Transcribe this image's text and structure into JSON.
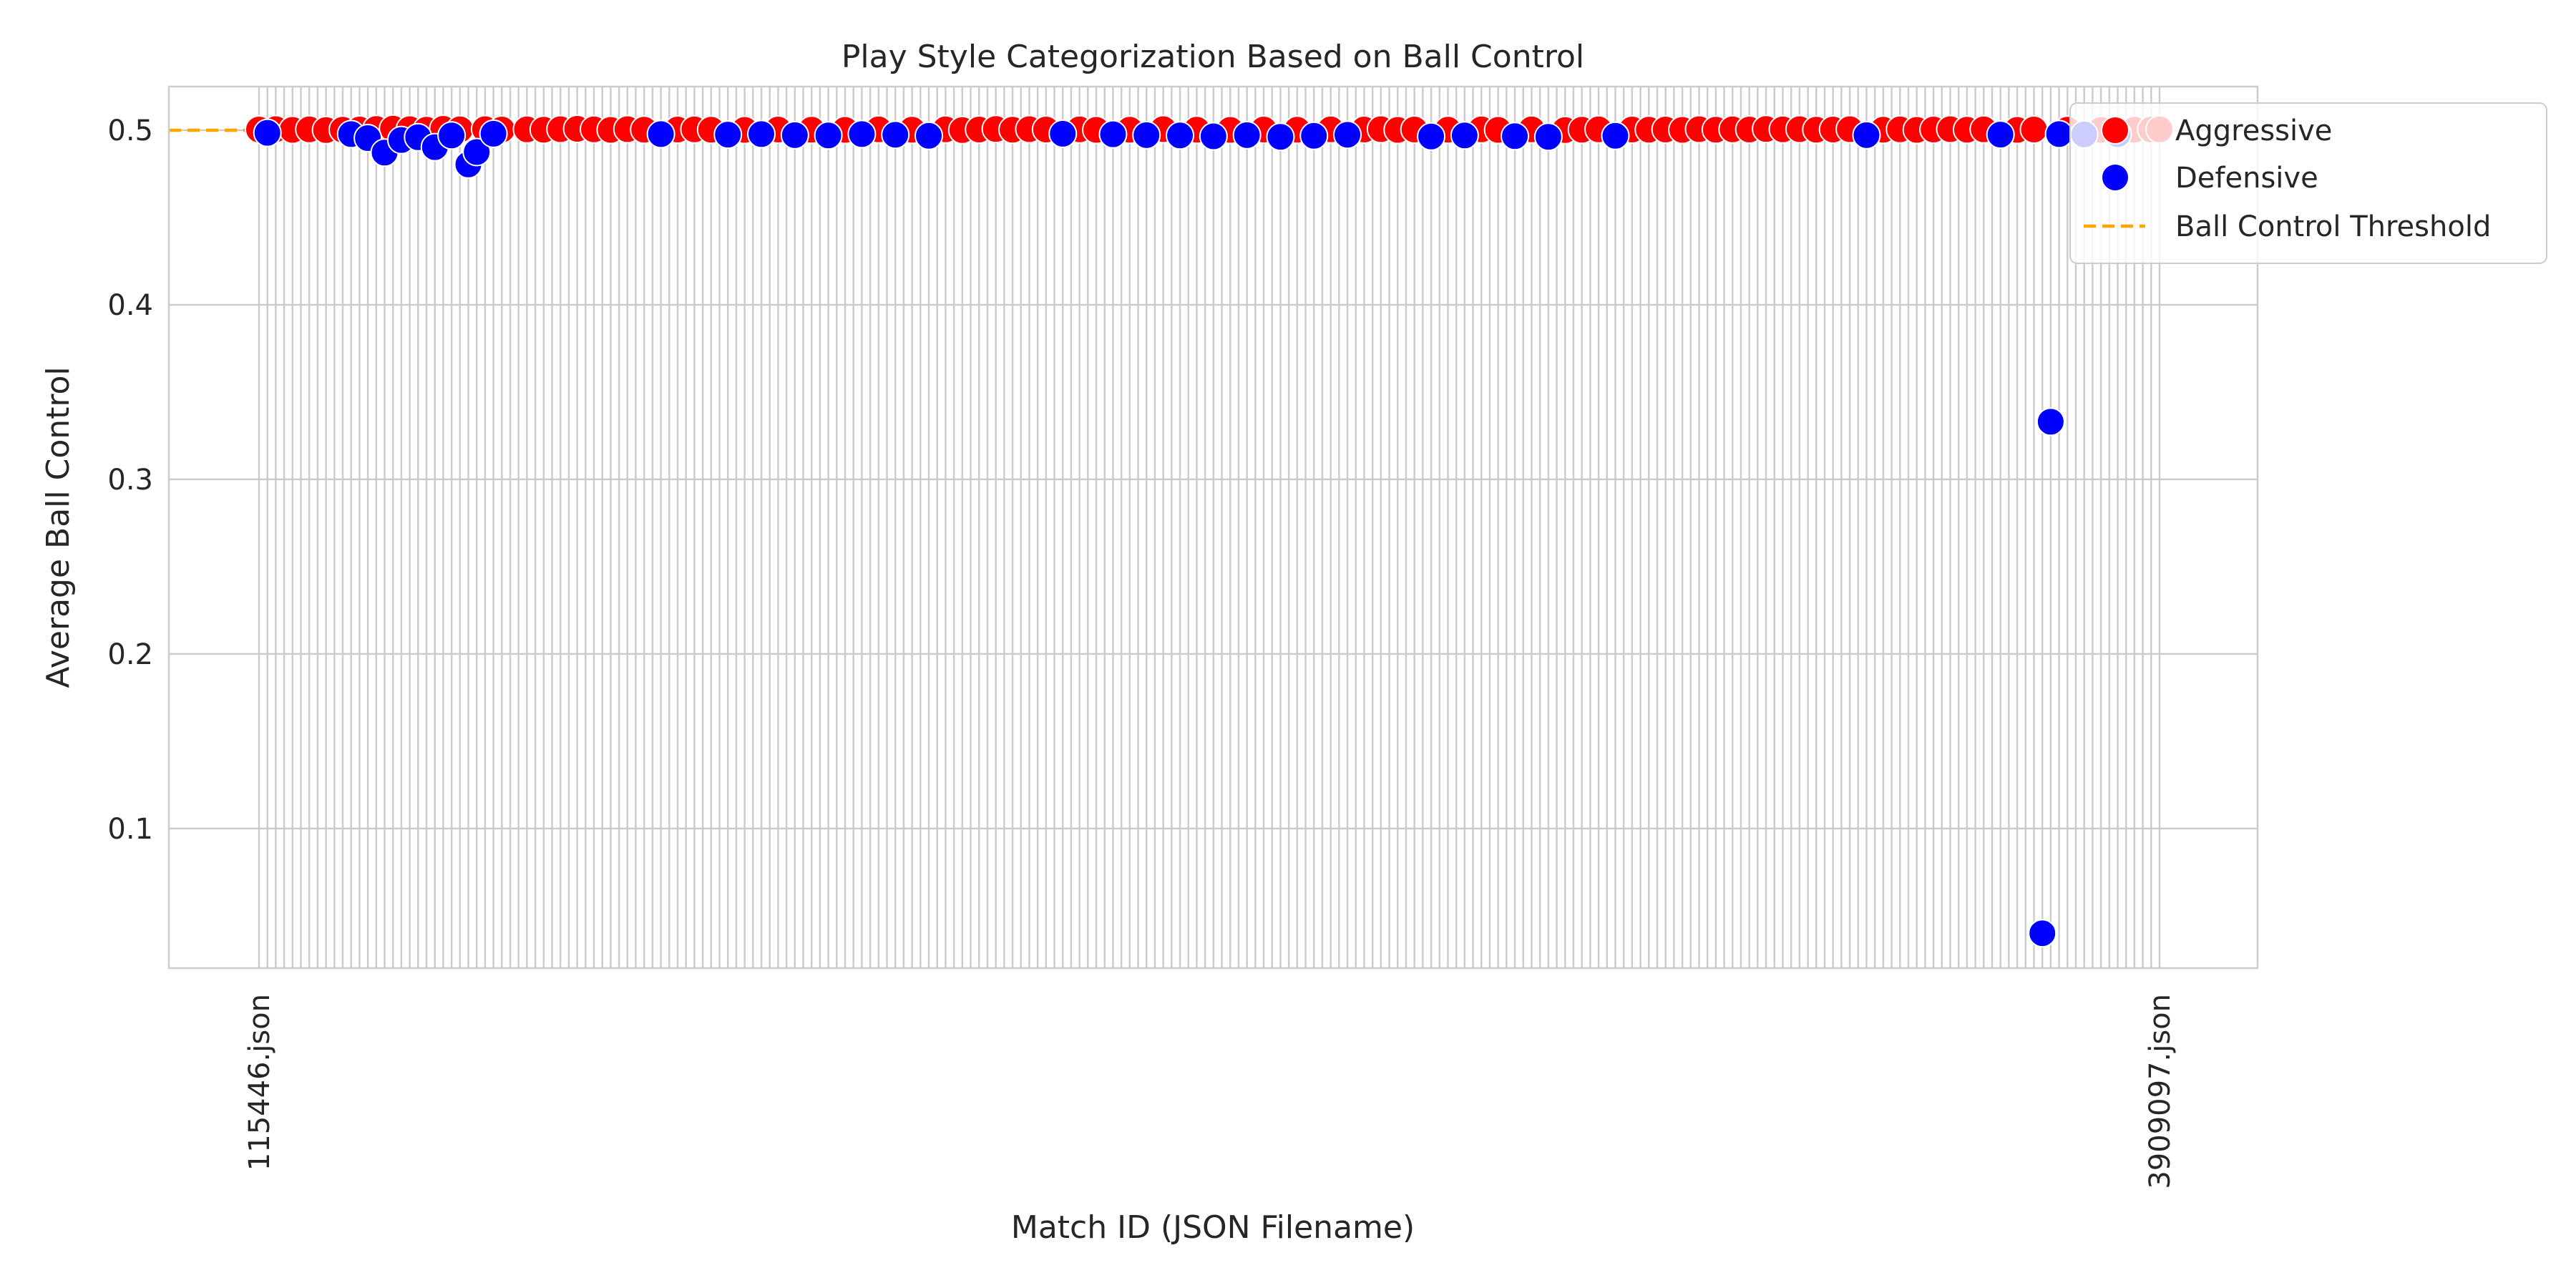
{
  "chart_data": {
    "type": "scatter",
    "title": "Play Style Categorization Based on Ball Control",
    "xlabel": "Match ID (JSON Filename)",
    "ylabel": "Average Ball Control",
    "ylim": [
      0.02,
      0.525
    ],
    "yticks": [
      0.1,
      0.2,
      0.3,
      0.4,
      0.5
    ],
    "grid": true,
    "legend_position": "top-right, partly outside axes",
    "x_category_count": 228,
    "first_category_label": "115446.json",
    "last_category_label": "3909097.json",
    "threshold": {
      "name": "Ball Control Threshold",
      "value": 0.5,
      "color": "#ffa500"
    },
    "series": [
      {
        "name": "Aggressive",
        "color": "#ff0000",
        "points": [
          [
            0,
            0.5004
          ],
          [
            2,
            0.5006
          ],
          [
            4,
            0.5002
          ],
          [
            6,
            0.5005
          ],
          [
            8,
            0.5001
          ],
          [
            10,
            0.5003
          ],
          [
            12,
            0.5004
          ],
          [
            14,
            0.5007
          ],
          [
            16,
            0.5009
          ],
          [
            18,
            0.5006
          ],
          [
            20,
            0.5003
          ],
          [
            22,
            0.5008
          ],
          [
            24,
            0.5005
          ],
          [
            27,
            0.5006
          ],
          [
            29,
            0.5004
          ],
          [
            32,
            0.5005
          ],
          [
            34,
            0.5003
          ],
          [
            36,
            0.5006
          ],
          [
            38,
            0.5008
          ],
          [
            40,
            0.5005
          ],
          [
            42,
            0.5002
          ],
          [
            44,
            0.5006
          ],
          [
            46,
            0.5003
          ],
          [
            50,
            0.5004
          ],
          [
            52,
            0.5005
          ],
          [
            54,
            0.5003
          ],
          [
            58,
            0.5002
          ],
          [
            62,
            0.5004
          ],
          [
            66,
            0.5003
          ],
          [
            70,
            0.5002
          ],
          [
            74,
            0.5005
          ],
          [
            78,
            0.5003
          ],
          [
            82,
            0.5005
          ],
          [
            84,
            0.5001
          ],
          [
            86,
            0.5004
          ],
          [
            88,
            0.5007
          ],
          [
            90,
            0.5003
          ],
          [
            92,
            0.5006
          ],
          [
            94,
            0.5004
          ],
          [
            98,
            0.5005
          ],
          [
            100,
            0.5002
          ],
          [
            104,
            0.5003
          ],
          [
            108,
            0.5006
          ],
          [
            112,
            0.5003
          ],
          [
            116,
            0.5002
          ],
          [
            120,
            0.5004
          ],
          [
            124,
            0.5003
          ],
          [
            128,
            0.5005
          ],
          [
            132,
            0.5004
          ],
          [
            134,
            0.5006
          ],
          [
            136,
            0.5002
          ],
          [
            138,
            0.5004
          ],
          [
            142,
            0.5003
          ],
          [
            146,
            0.5005
          ],
          [
            148,
            0.5002
          ],
          [
            152,
            0.5005
          ],
          [
            156,
            0.5001
          ],
          [
            158,
            0.5003
          ],
          [
            160,
            0.5005
          ],
          [
            164,
            0.5004
          ],
          [
            166,
            0.5003
          ],
          [
            168,
            0.5004
          ],
          [
            170,
            0.5002
          ],
          [
            172,
            0.5006
          ],
          [
            174,
            0.5003
          ],
          [
            176,
            0.5005
          ],
          [
            178,
            0.5004
          ],
          [
            180,
            0.5007
          ],
          [
            182,
            0.5005
          ],
          [
            184,
            0.5006
          ],
          [
            186,
            0.5003
          ],
          [
            188,
            0.5004
          ],
          [
            190,
            0.5006
          ],
          [
            194,
            0.5003
          ],
          [
            196,
            0.5005
          ],
          [
            198,
            0.5002
          ],
          [
            200,
            0.5004
          ],
          [
            202,
            0.5006
          ],
          [
            204,
            0.5003
          ],
          [
            206,
            0.5005
          ],
          [
            210,
            0.5002
          ],
          [
            212,
            0.5004
          ],
          [
            216,
            0.5003
          ],
          [
            220,
            0.5002
          ],
          [
            224,
            0.5003
          ],
          [
            226,
            0.5004
          ],
          [
            227,
            0.5005
          ]
        ]
      },
      {
        "name": "Defensive",
        "color": "#0000ff",
        "points": [
          [
            1,
            0.4985
          ],
          [
            11,
            0.4978
          ],
          [
            13,
            0.4955
          ],
          [
            15,
            0.4872
          ],
          [
            17,
            0.4944
          ],
          [
            19,
            0.496
          ],
          [
            21,
            0.4903
          ],
          [
            23,
            0.497
          ],
          [
            25,
            0.4804
          ],
          [
            26,
            0.4875
          ],
          [
            28,
            0.498
          ],
          [
            48,
            0.4978
          ],
          [
            56,
            0.4975
          ],
          [
            60,
            0.4978
          ],
          [
            64,
            0.4972
          ],
          [
            68,
            0.497
          ],
          [
            72,
            0.4978
          ],
          [
            76,
            0.4974
          ],
          [
            80,
            0.4968
          ],
          [
            96,
            0.498
          ],
          [
            102,
            0.4977
          ],
          [
            106,
            0.4972
          ],
          [
            110,
            0.497
          ],
          [
            114,
            0.4965
          ],
          [
            118,
            0.4972
          ],
          [
            122,
            0.4962
          ],
          [
            126,
            0.4968
          ],
          [
            130,
            0.4974
          ],
          [
            140,
            0.4964
          ],
          [
            144,
            0.497
          ],
          [
            150,
            0.4966
          ],
          [
            154,
            0.4962
          ],
          [
            162,
            0.4968
          ],
          [
            192,
            0.4972
          ],
          [
            208,
            0.4975
          ],
          [
            213,
            0.04
          ],
          [
            214,
            0.333
          ],
          [
            215,
            0.4978
          ],
          [
            218,
            0.4976
          ],
          [
            222,
            0.4978
          ]
        ]
      }
    ]
  }
}
